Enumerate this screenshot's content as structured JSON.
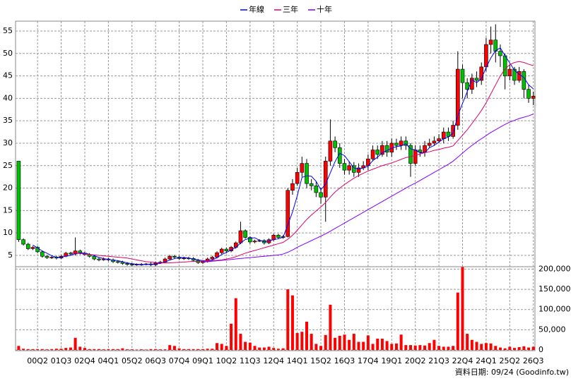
{
  "chart_data": {
    "type": "candlestick",
    "categories": [
      null,
      null,
      null,
      null,
      "00Q2",
      null,
      null,
      null,
      null,
      "01Q3",
      null,
      null,
      null,
      null,
      "02Q4",
      null,
      null,
      null,
      null,
      "04Q1",
      null,
      null,
      null,
      null,
      "05Q2",
      null,
      null,
      null,
      null,
      "06Q3",
      null,
      null,
      null,
      null,
      "07Q4",
      null,
      null,
      null,
      null,
      "09Q1",
      null,
      null,
      null,
      null,
      "10Q2",
      null,
      null,
      null,
      null,
      "11Q3",
      null,
      null,
      null,
      null,
      "12Q4",
      null,
      null,
      null,
      null,
      "14Q1",
      null,
      null,
      null,
      null,
      "15Q2",
      null,
      null,
      null,
      null,
      "16Q3",
      null,
      null,
      null,
      null,
      "17Q4",
      null,
      null,
      null,
      null,
      "19Q1",
      null,
      null,
      null,
      null,
      "20Q2",
      null,
      null,
      null,
      null,
      "21Q3",
      null,
      null,
      null,
      null,
      "22Q4",
      null,
      null,
      null,
      null,
      "24Q1",
      null,
      null,
      null,
      null,
      "25Q2",
      null,
      null,
      null,
      null,
      "26Q3"
    ],
    "open": [
      26,
      8.5,
      7.5,
      6.5,
      6.8,
      5.8,
      4.8,
      4.5,
      4.6,
      4.4,
      4.8,
      5.5,
      5.3,
      6.0,
      5.5,
      5.2,
      4.8,
      4.2,
      4.0,
      4.2,
      4.0,
      3.6,
      3.5,
      3.2,
      3.0,
      2.9,
      3.0,
      3.0,
      3.1,
      2.9,
      3.3,
      3.5,
      4.2,
      4.8,
      4.6,
      4.3,
      4.4,
      4.3,
      3.9,
      3.4,
      3.6,
      4.2,
      4.6,
      5.6,
      6.4,
      6.0,
      6.8,
      7.8,
      10.5,
      9.0,
      8.0,
      8.2,
      8.3,
      7.8,
      8.5,
      9.5,
      9.0,
      9.2,
      19.5,
      21.0,
      23.5,
      25.5,
      21.0,
      20.5,
      19.0,
      18.0,
      26.0,
      30.5,
      29.0,
      25.5,
      24.0,
      25.0,
      23.5,
      24.5,
      25.0,
      26.5,
      28.5,
      27.5,
      29.5,
      28.0,
      30.0,
      29.5,
      30.5,
      29.5,
      25.5,
      28.5,
      28.0,
      29.5,
      30.0,
      30.5,
      31.0,
      32.5,
      31.5,
      34.0,
      46.5,
      43.5,
      42.0,
      44.5,
      44.0,
      47.0,
      52.0,
      53.0,
      50.5,
      49.5,
      45.0,
      46.5,
      44.0,
      46.0,
      42.0,
      40.0
    ],
    "high": [
      26,
      8.8,
      7.8,
      7.1,
      7.1,
      6.1,
      5.1,
      4.9,
      4.9,
      5.1,
      5.8,
      5.8,
      9.0,
      6.3,
      5.8,
      5.5,
      5.1,
      4.5,
      4.5,
      4.5,
      4.3,
      3.9,
      3.8,
      3.5,
      3.3,
      3.2,
      3.3,
      3.3,
      3.4,
      3.6,
      3.8,
      4.5,
      5.1,
      5.1,
      4.9,
      4.7,
      4.7,
      4.6,
      4.2,
      3.9,
      4.5,
      4.9,
      5.9,
      6.7,
      6.7,
      7.1,
      8.1,
      12.5,
      10.8,
      9.3,
      8.5,
      8.6,
      8.6,
      8.8,
      9.8,
      9.8,
      9.5,
      20.0,
      22.0,
      24.5,
      27.0,
      26.5,
      22.0,
      21.5,
      20.0,
      27.0,
      35.3,
      31.5,
      30.0,
      26.5,
      26.0,
      25.8,
      25.5,
      26.0,
      27.5,
      29.5,
      29.5,
      30.5,
      30.5,
      31.0,
      31.0,
      31.5,
      31.5,
      30.0,
      29.5,
      29.5,
      30.5,
      31.0,
      31.5,
      32.0,
      33.5,
      33.5,
      35.0,
      50.5,
      47.5,
      44.5,
      45.5,
      46.0,
      48.0,
      53.5,
      56.0,
      56.5,
      52.0,
      50.0,
      47.5,
      47.0,
      47.0,
      46.5,
      43.0,
      41.5
    ],
    "low": [
      8.0,
      7.2,
      6.2,
      6.2,
      5.5,
      4.5,
      4.2,
      4.2,
      4.1,
      4.2,
      4.6,
      5.0,
      5.0,
      5.2,
      4.9,
      4.5,
      3.9,
      3.7,
      3.8,
      3.7,
      3.3,
      3.2,
      2.9,
      2.7,
      2.6,
      2.7,
      2.7,
      2.8,
      2.6,
      2.6,
      3.1,
      3.3,
      4.0,
      4.3,
      4.0,
      4.0,
      4.0,
      3.6,
      3.1,
      3.1,
      3.4,
      4.0,
      4.3,
      5.3,
      5.5,
      5.7,
      6.5,
      7.5,
      8.7,
      7.6,
      7.7,
      8.0,
      7.4,
      7.5,
      8.2,
      8.7,
      8.7,
      9.0,
      18.5,
      20.5,
      22.5,
      20.0,
      19.5,
      18.0,
      16.5,
      12.5,
      25.0,
      28.0,
      24.5,
      23.0,
      23.0,
      22.5,
      22.5,
      24.0,
      24.0,
      26.0,
      26.5,
      27.0,
      27.0,
      27.0,
      28.5,
      28.5,
      28.5,
      22.5,
      25.0,
      27.0,
      27.0,
      29.0,
      29.5,
      30.0,
      30.0,
      30.5,
      31.0,
      33.0,
      40.0,
      40.0,
      41.0,
      42.5,
      43.0,
      46.0,
      50.0,
      48.0,
      47.0,
      42.0,
      44.0,
      43.0,
      43.5,
      40.0,
      39.0,
      38.5
    ],
    "close": [
      8.5,
      7.5,
      6.5,
      6.8,
      5.8,
      4.8,
      4.5,
      4.6,
      4.4,
      4.8,
      5.5,
      5.3,
      6.0,
      5.5,
      5.2,
      4.8,
      4.2,
      4.0,
      4.2,
      4.0,
      3.6,
      3.5,
      3.2,
      3.0,
      2.9,
      3.0,
      3.0,
      3.1,
      2.9,
      3.3,
      3.5,
      4.2,
      4.8,
      4.6,
      4.3,
      4.4,
      4.3,
      3.9,
      3.4,
      3.6,
      4.2,
      4.6,
      5.6,
      6.4,
      6.0,
      6.8,
      7.8,
      10.5,
      9.0,
      8.0,
      8.2,
      8.3,
      7.8,
      8.5,
      9.5,
      9.0,
      9.2,
      19.5,
      21.0,
      23.5,
      25.5,
      21.0,
      20.5,
      19.0,
      18.0,
      26.0,
      30.5,
      29.0,
      25.5,
      24.0,
      25.0,
      23.5,
      24.5,
      25.0,
      26.5,
      28.5,
      27.5,
      29.5,
      28.0,
      30.0,
      29.5,
      30.5,
      29.5,
      25.5,
      28.5,
      28.0,
      29.5,
      30.0,
      30.5,
      31.0,
      32.5,
      31.5,
      34.0,
      46.5,
      43.5,
      42.0,
      44.5,
      44.0,
      47.0,
      52.0,
      53.0,
      50.5,
      49.5,
      45.0,
      46.5,
      44.0,
      46.0,
      42.0,
      40.0,
      40.5
    ],
    "up_color": "#ff0000",
    "down_color": "#00c000",
    "series": [
      {
        "name": "年線",
        "color": "#0000ff",
        "values": [
          null,
          null,
          null,
          7.3,
          6.65,
          5.98,
          5.48,
          4.93,
          4.58,
          4.58,
          4.83,
          5.0,
          5.4,
          5.58,
          5.5,
          5.25,
          4.93,
          4.55,
          4.3,
          4.1,
          3.95,
          3.83,
          3.58,
          3.33,
          3.15,
          3.03,
          2.98,
          3.0,
          3.0,
          3.08,
          3.2,
          3.53,
          3.95,
          4.28,
          4.48,
          4.53,
          4.4,
          4.23,
          4.0,
          3.83,
          3.78,
          3.95,
          4.5,
          5.2,
          5.65,
          6.2,
          6.75,
          7.78,
          8.53,
          8.83,
          8.93,
          8.38,
          8.08,
          8.2,
          8.53,
          8.7,
          9.05,
          11.8,
          14.68,
          18.3,
          22.38,
          22.75,
          22.63,
          21.5,
          19.63,
          20.88,
          23.38,
          25.88,
          27.75,
          27.25,
          25.88,
          24.5,
          24.25,
          24.5,
          24.88,
          26.13,
          26.88,
          27.88,
          28.38,
          28.88,
          29.25,
          29.38,
          29.88,
          28.75,
          28.5,
          27.88,
          27.88,
          29.0,
          29.5,
          30.25,
          31.0,
          31.38,
          32.25,
          36.13,
          38.88,
          41.5,
          44.13,
          43.5,
          44.38,
          46.88,
          49.0,
          50.63,
          51.25,
          49.5,
          47.88,
          46.25,
          45.38,
          44.63,
          43.0,
          42.13
        ]
      },
      {
        "name": "三年",
        "color": "#e0006a",
        "values": [
          null,
          null,
          null,
          null,
          null,
          null,
          null,
          null,
          null,
          null,
          null,
          5.6,
          5.5,
          5.4,
          5.3,
          5.2,
          5.1,
          5.0,
          4.9,
          4.8,
          4.7,
          4.6,
          4.5,
          4.4,
          4.2,
          4.0,
          3.8,
          3.6,
          3.5,
          3.4,
          3.35,
          3.3,
          3.35,
          3.4,
          3.45,
          3.5,
          3.6,
          3.65,
          3.7,
          3.7,
          3.75,
          3.8,
          3.9,
          4.0,
          4.2,
          4.4,
          4.7,
          5.1,
          5.5,
          5.8,
          6.1,
          6.4,
          6.7,
          7.0,
          7.3,
          7.6,
          7.9,
          8.6,
          9.5,
          10.6,
          11.8,
          13.0,
          14.0,
          14.9,
          15.8,
          16.8,
          18.0,
          19.1,
          20.0,
          20.8,
          21.5,
          22.2,
          22.8,
          23.3,
          23.8,
          24.2,
          24.6,
          25.0,
          25.3,
          25.6,
          26.0,
          26.4,
          26.8,
          27.0,
          27.3,
          27.6,
          27.9,
          28.1,
          28.4,
          28.6,
          28.9,
          29.1,
          29.4,
          30.6,
          31.8,
          33.0,
          34.4,
          35.8,
          37.3,
          39.0,
          41.0,
          43.0,
          45.0,
          46.5,
          47.5,
          48.0,
          48.2,
          48.0,
          47.6,
          47.3
        ]
      },
      {
        "name": "十年",
        "color": "#8000ff",
        "values": [
          null,
          null,
          null,
          null,
          null,
          null,
          null,
          null,
          null,
          null,
          null,
          null,
          null,
          null,
          null,
          null,
          null,
          null,
          null,
          null,
          null,
          null,
          null,
          null,
          null,
          null,
          null,
          null,
          null,
          null,
          null,
          null,
          null,
          null,
          null,
          null,
          null,
          null,
          null,
          3.5,
          3.6,
          3.7,
          3.8,
          3.9,
          4.0,
          4.1,
          4.2,
          4.3,
          4.4,
          4.5,
          4.6,
          4.7,
          4.8,
          4.9,
          5.0,
          5.1,
          5.3,
          5.7,
          6.2,
          6.8,
          7.3,
          7.8,
          8.3,
          8.8,
          9.3,
          9.8,
          10.4,
          11.0,
          11.6,
          12.2,
          12.8,
          13.4,
          14.0,
          14.6,
          15.2,
          15.8,
          16.4,
          17.0,
          17.6,
          18.2,
          18.8,
          19.4,
          20.0,
          20.6,
          21.1,
          21.7,
          22.3,
          22.9,
          23.5,
          24.1,
          24.7,
          25.3,
          26.0,
          26.9,
          27.8,
          28.7,
          29.5,
          30.3,
          31.0,
          31.7,
          32.4,
          33.0,
          33.6,
          34.2,
          34.7,
          35.1,
          35.5,
          35.8,
          36.1,
          36.5
        ]
      }
    ],
    "ylim": [
      2.48,
      57.2
    ],
    "yticks": [
      5,
      10,
      15,
      20,
      25,
      30,
      35,
      40,
      45,
      50,
      55
    ],
    "grid": true,
    "volume": {
      "color": "#ff0000",
      "ylim": [
        0,
        206000
      ],
      "yticks": [
        0,
        {
          "value": 50000,
          "label": "50,000"
        },
        {
          "value": 100000,
          "label": "100,000"
        },
        {
          "value": 150000,
          "label": "150,000"
        },
        {
          "value": 200000,
          "label": "200,000"
        }
      ],
      "values": [
        10000,
        3000,
        2000,
        2000,
        2000,
        2000,
        1500,
        2000,
        3000,
        3000,
        5000,
        6000,
        30000,
        8000,
        5000,
        2000,
        2000,
        2000,
        1500,
        2000,
        2000,
        2000,
        4000,
        1500,
        1500,
        1000,
        1500,
        1000,
        2000,
        2000,
        1500,
        1500,
        12000,
        10000,
        4000,
        2000,
        2000,
        2000,
        2000,
        2000,
        3000,
        3000,
        17000,
        15000,
        10000,
        65000,
        128000,
        40000,
        20000,
        18000,
        10000,
        6000,
        6000,
        8000,
        5000,
        3000,
        4000,
        150000,
        135000,
        42000,
        45000,
        70000,
        40000,
        15000,
        10000,
        37000,
        112000,
        30000,
        35000,
        38000,
        25000,
        40000,
        20000,
        20000,
        36000,
        15000,
        28000,
        28000,
        22000,
        15000,
        16000,
        38000,
        12000,
        12000,
        11000,
        12000,
        11000,
        17000,
        25000,
        10000,
        8000,
        8000,
        10000,
        142000,
        205000,
        40000,
        25000,
        20000,
        15000,
        17000,
        16000,
        10000,
        6000,
        4000,
        8000,
        5000,
        7000,
        9000,
        6000,
        8000
      ]
    },
    "note": "資料日期: 09/24 (Goodinfo.tw)"
  }
}
